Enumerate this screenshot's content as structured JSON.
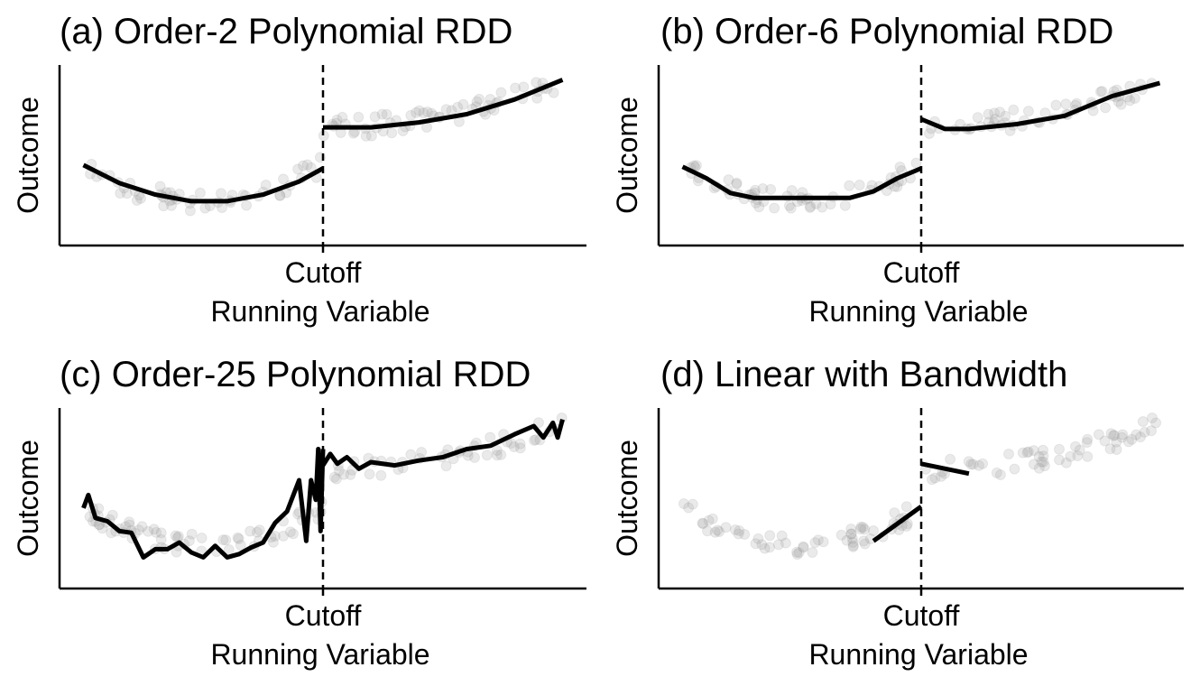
{
  "chart_data": [
    {
      "type": "scatter",
      "title": "(a) Order-2 Polynomial RDD",
      "xlabel": "Running Variable",
      "ylabel": "Outcome",
      "xticks": [
        {
          "value": 0,
          "label": "Cutoff"
        }
      ],
      "xlim": [
        -1.1,
        1.1
      ],
      "ylim": [
        -0.05,
        1.05
      ],
      "cutoff": 0,
      "fit_left": {
        "x": [
          -1.0,
          -0.85,
          -0.7,
          -0.55,
          -0.4,
          -0.25,
          -0.1,
          0.0
        ],
        "y": [
          0.44,
          0.33,
          0.26,
          0.22,
          0.22,
          0.26,
          0.34,
          0.42
        ]
      },
      "fit_right": {
        "x": [
          0.0,
          0.2,
          0.4,
          0.6,
          0.8,
          1.0
        ],
        "y": [
          0.67,
          0.67,
          0.7,
          0.75,
          0.84,
          0.96
        ]
      }
    },
    {
      "type": "scatter",
      "title": "(b) Order-6 Polynomial RDD",
      "xlabel": "Running Variable",
      "ylabel": "Outcome",
      "xticks": [
        {
          "value": 0,
          "label": "Cutoff"
        }
      ],
      "xlim": [
        -1.1,
        1.1
      ],
      "ylim": [
        -0.05,
        1.05
      ],
      "cutoff": 0,
      "fit_left": {
        "x": [
          -1.0,
          -0.9,
          -0.8,
          -0.7,
          -0.6,
          -0.5,
          -0.4,
          -0.3,
          -0.2,
          -0.1,
          0.0
        ],
        "y": [
          0.43,
          0.36,
          0.27,
          0.24,
          0.24,
          0.24,
          0.24,
          0.24,
          0.28,
          0.36,
          0.42
        ]
      },
      "fit_right": {
        "x": [
          0.0,
          0.1,
          0.2,
          0.4,
          0.6,
          0.8,
          1.0
        ],
        "y": [
          0.72,
          0.66,
          0.66,
          0.69,
          0.74,
          0.86,
          0.94
        ]
      }
    },
    {
      "type": "scatter",
      "title": "(c) Order-25 Polynomial RDD",
      "xlabel": "Running Variable",
      "ylabel": "Outcome",
      "xticks": [
        {
          "value": 0,
          "label": "Cutoff"
        }
      ],
      "xlim": [
        -1.1,
        1.1
      ],
      "ylim": [
        -0.05,
        1.05
      ],
      "cutoff": 0,
      "fit_left": {
        "x": [
          -1.0,
          -0.98,
          -0.95,
          -0.9,
          -0.85,
          -0.8,
          -0.75,
          -0.7,
          -0.65,
          -0.6,
          -0.55,
          -0.5,
          -0.45,
          -0.4,
          -0.35,
          -0.3,
          -0.25,
          -0.2,
          -0.15,
          -0.1,
          -0.07,
          -0.05,
          -0.03,
          -0.02,
          -0.01,
          0.0
        ],
        "y": [
          0.44,
          0.52,
          0.38,
          0.36,
          0.3,
          0.29,
          0.14,
          0.19,
          0.19,
          0.23,
          0.17,
          0.14,
          0.21,
          0.14,
          0.16,
          0.2,
          0.23,
          0.35,
          0.42,
          0.61,
          0.24,
          0.61,
          0.49,
          0.8,
          0.3,
          0.8
        ]
      },
      "fit_right": {
        "x": [
          0.0,
          0.03,
          0.06,
          0.1,
          0.15,
          0.2,
          0.3,
          0.4,
          0.5,
          0.6,
          0.7,
          0.8,
          0.88,
          0.92,
          0.96,
          0.98,
          1.0
        ],
        "y": [
          0.7,
          0.77,
          0.71,
          0.75,
          0.68,
          0.72,
          0.7,
          0.73,
          0.75,
          0.8,
          0.82,
          0.89,
          0.94,
          0.87,
          0.96,
          0.87,
          0.98
        ]
      }
    },
    {
      "type": "scatter",
      "title": "(d) Linear with Bandwidth",
      "xlabel": "Running Variable",
      "ylabel": "Outcome",
      "xticks": [
        {
          "value": 0,
          "label": "Cutoff"
        }
      ],
      "xlim": [
        -1.1,
        1.1
      ],
      "ylim": [
        -0.05,
        1.05
      ],
      "cutoff": 0,
      "fit_left": {
        "x": [
          -0.2,
          0.0
        ],
        "y": [
          0.24,
          0.45
        ]
      },
      "fit_right": {
        "x": [
          0.0,
          0.2
        ],
        "y": [
          0.71,
          0.65
        ]
      }
    }
  ]
}
